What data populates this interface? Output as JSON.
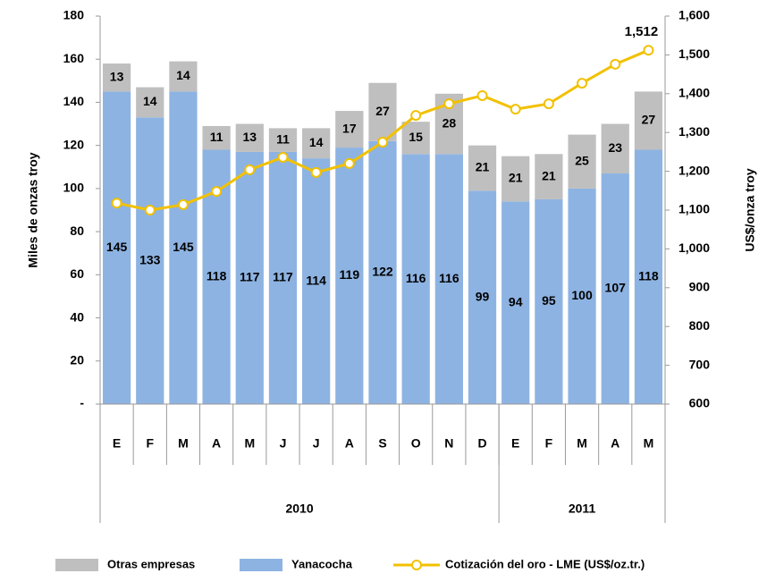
{
  "chart_data": {
    "type": "bar",
    "stacked": true,
    "y_label": "Miles de onzas troy",
    "y2_label": "US$/onza troy",
    "categories": [
      "E",
      "F",
      "M",
      "A",
      "M",
      "J",
      "J",
      "A",
      "S",
      "O",
      "N",
      "D",
      "E",
      "F",
      "M",
      "A",
      "M"
    ],
    "groups": [
      {
        "label": "2010",
        "span": 12
      },
      {
        "label": "2011",
        "span": 5
      }
    ],
    "series": [
      {
        "name": "Yanacocha",
        "color": "#8db3e2",
        "values": [
          145,
          133,
          145,
          118,
          117,
          117,
          114,
          119,
          122,
          116,
          116,
          99,
          94,
          95,
          100,
          107,
          118
        ]
      },
      {
        "name": "Otras empresas",
        "color": "#bfbfbf",
        "values": [
          13,
          14,
          14,
          11,
          13,
          11,
          14,
          17,
          27,
          15,
          28,
          21,
          21,
          21,
          25,
          23,
          27
        ]
      },
      {
        "name": "Cotización del oro - LME (US$/oz.tr.)",
        "type": "line",
        "axis": "y2",
        "color": "#f2c100",
        "values": [
          1118,
          1100,
          1114,
          1148,
          1204,
          1236,
          1197,
          1220,
          1275,
          1344,
          1374,
          1395,
          1360,
          1374,
          1427,
          1476,
          1512
        ],
        "value_labels": [
          null,
          null,
          null,
          null,
          null,
          null,
          null,
          null,
          null,
          null,
          null,
          null,
          null,
          null,
          null,
          null,
          "1,512"
        ]
      }
    ],
    "legend_order": [
      1,
      0,
      2
    ],
    "ylim": [
      0,
      180
    ],
    "yticks": [
      {
        "value": 0,
        "label": "-"
      },
      20,
      40,
      60,
      80,
      100,
      120,
      140,
      160,
      180
    ],
    "y2lim": [
      600,
      1600
    ],
    "y2ticks": [
      600,
      700,
      800,
      900,
      {
        "value": 1000,
        "label": "1,000"
      },
      {
        "value": 1100,
        "label": "1,100"
      },
      {
        "value": 1200,
        "label": "1,200"
      },
      {
        "value": 1300,
        "label": "1,300"
      },
      {
        "value": 1400,
        "label": "1,400"
      },
      {
        "value": 1500,
        "label": "1,500"
      },
      {
        "value": 1600,
        "label": "1,600"
      }
    ],
    "grid": false
  }
}
